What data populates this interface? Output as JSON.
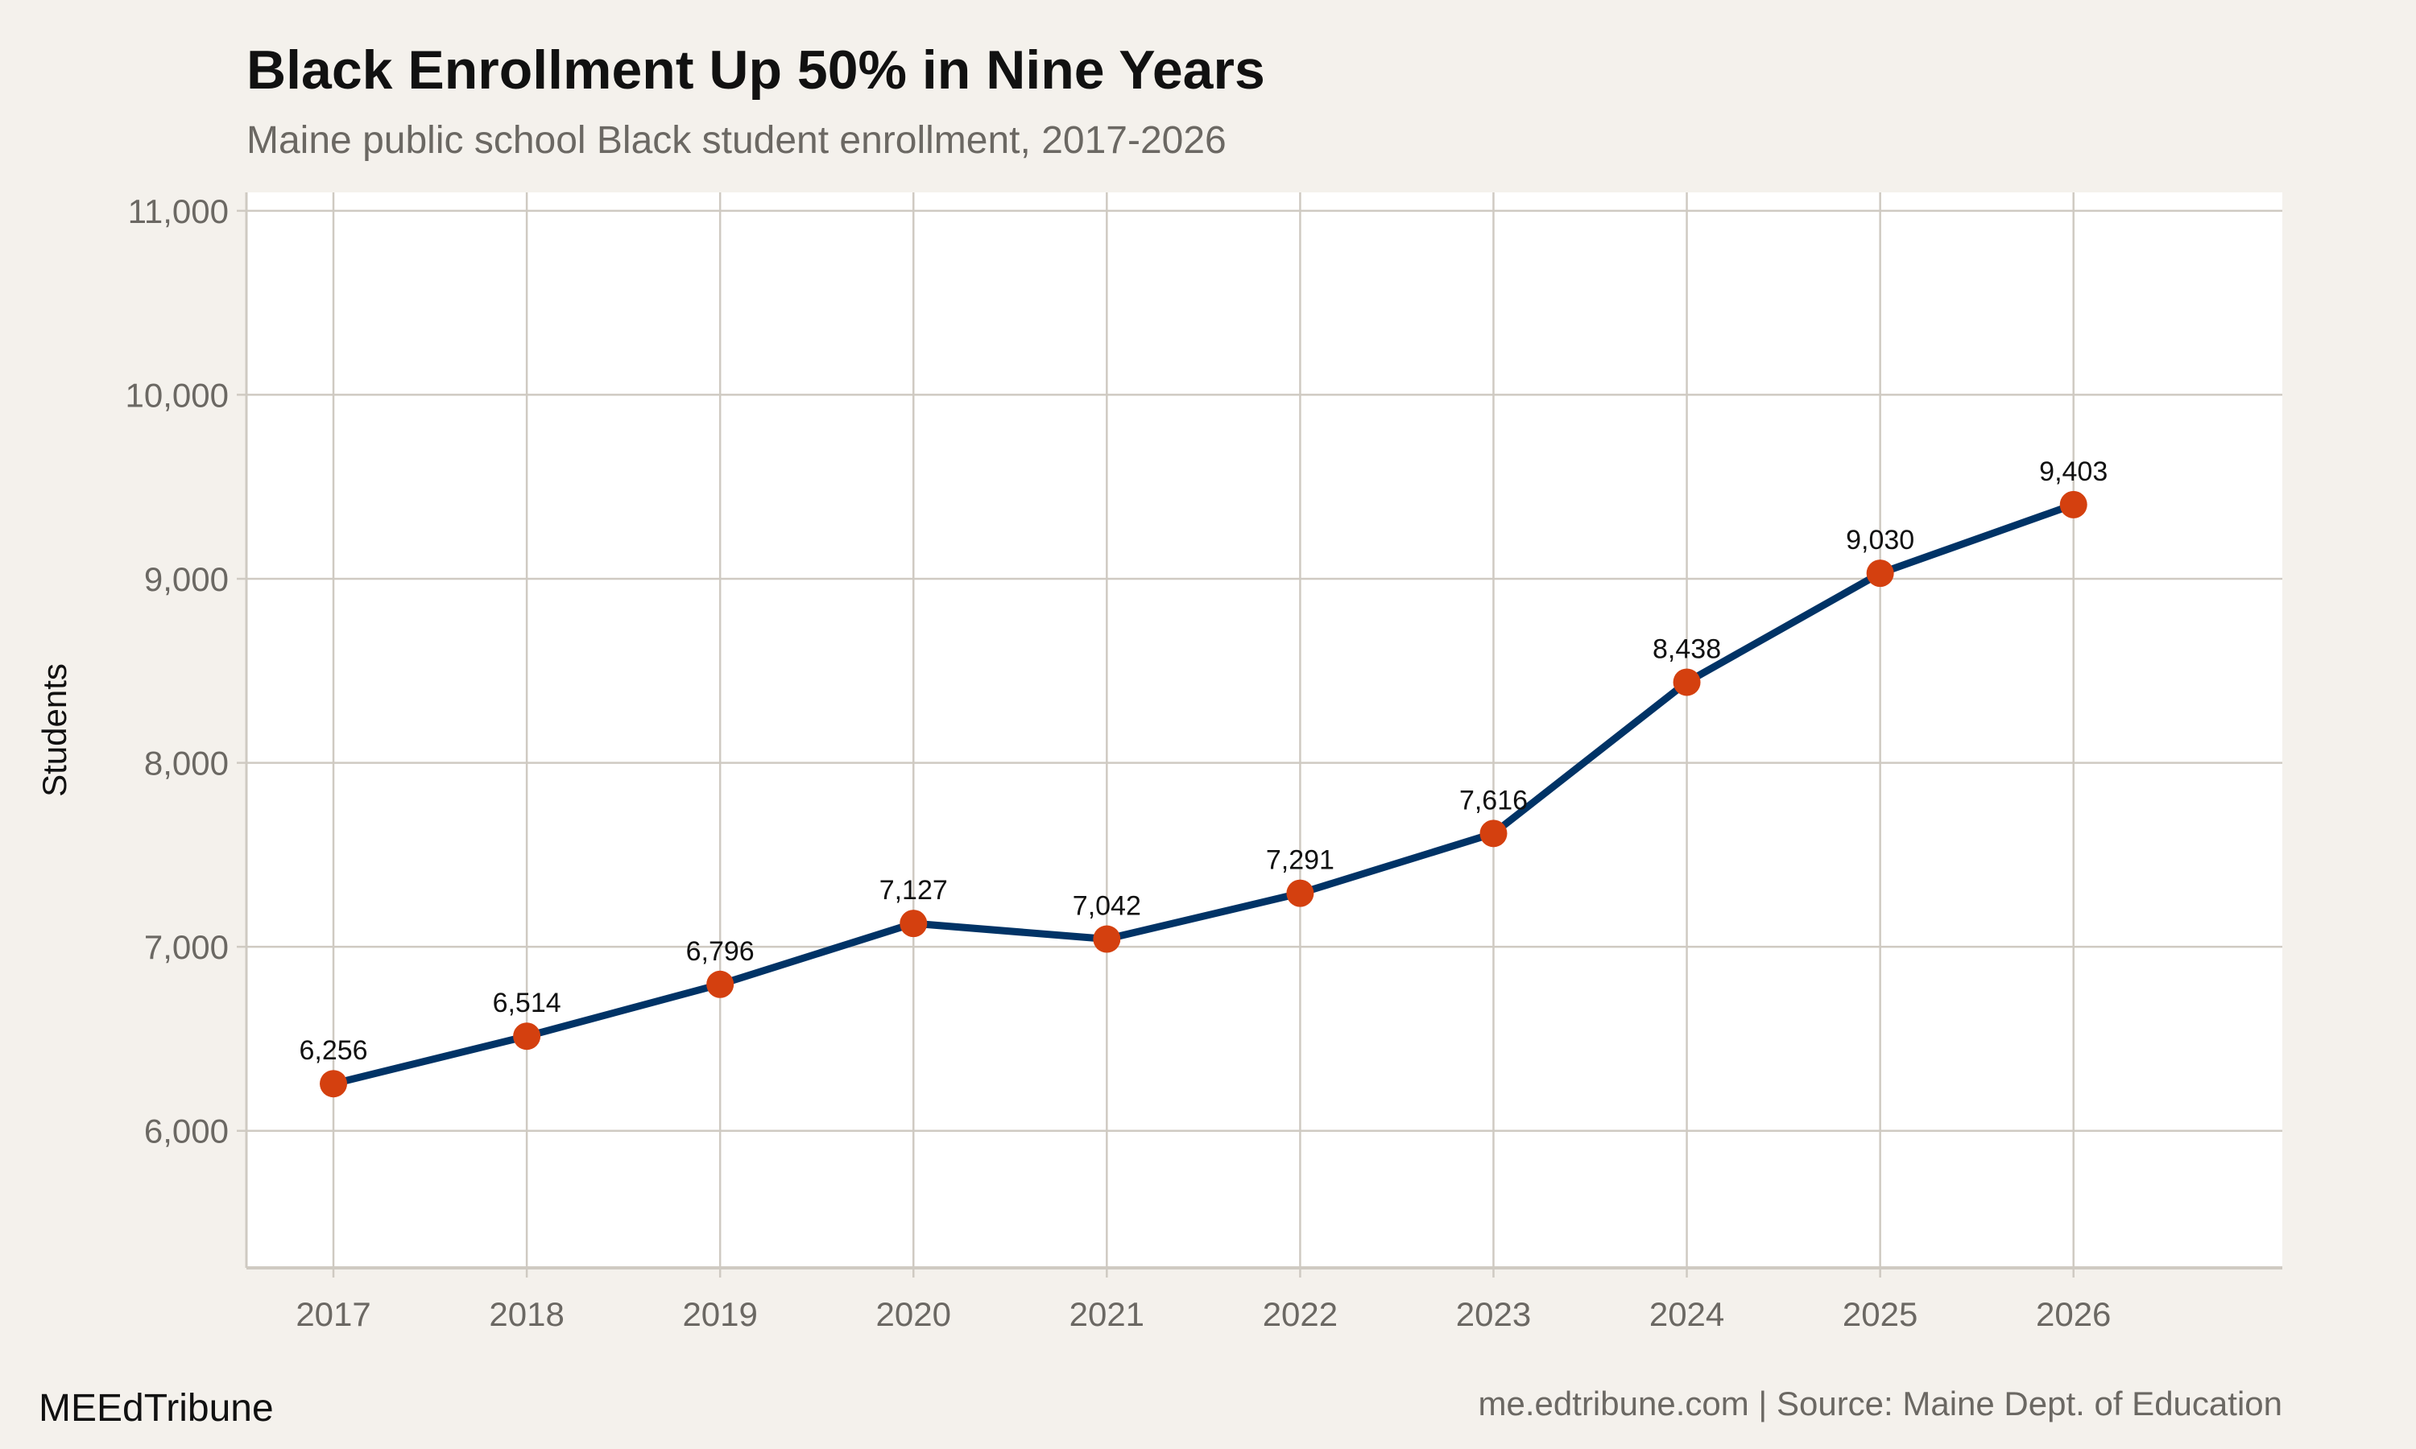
{
  "chart_data": {
    "type": "line",
    "title": "Black Enrollment Up 50% in Nine Years",
    "subtitle": "Maine public school Black student enrollment, 2017-2026",
    "xlabel": "",
    "ylabel": "Students",
    "x": [
      2017,
      2018,
      2019,
      2020,
      2021,
      2022,
      2023,
      2024,
      2025,
      2026
    ],
    "values": [
      6256,
      6514,
      6796,
      7127,
      7042,
      7291,
      7616,
      8438,
      9030,
      9403
    ],
    "data_labels": [
      "6,256",
      "6,514",
      "6,796",
      "7,127",
      "7,042",
      "7,291",
      "7,616",
      "8,438",
      "9,030",
      "9,403"
    ],
    "x_ticks": [
      "2017",
      "2018",
      "2019",
      "2020",
      "2021",
      "2022",
      "2023",
      "2024",
      "2025",
      "2026"
    ],
    "y_ticks": [
      6000,
      7000,
      8000,
      9000,
      10000,
      11000
    ],
    "y_tick_labels": [
      "6,000",
      "7,000",
      "8,000",
      "9,000",
      "10,000",
      "11,000"
    ],
    "xlim": [
      2016.55,
      2027.08
    ],
    "ylim": [
      5255,
      11100
    ],
    "grid": true,
    "line_color": "#003366",
    "point_color": "#d4400f",
    "grid_color": "#cfcac2"
  },
  "footer": {
    "brand": "MEEdTribune",
    "caption": "me.edtribune.com | Source: Maine Dept. of Education"
  }
}
